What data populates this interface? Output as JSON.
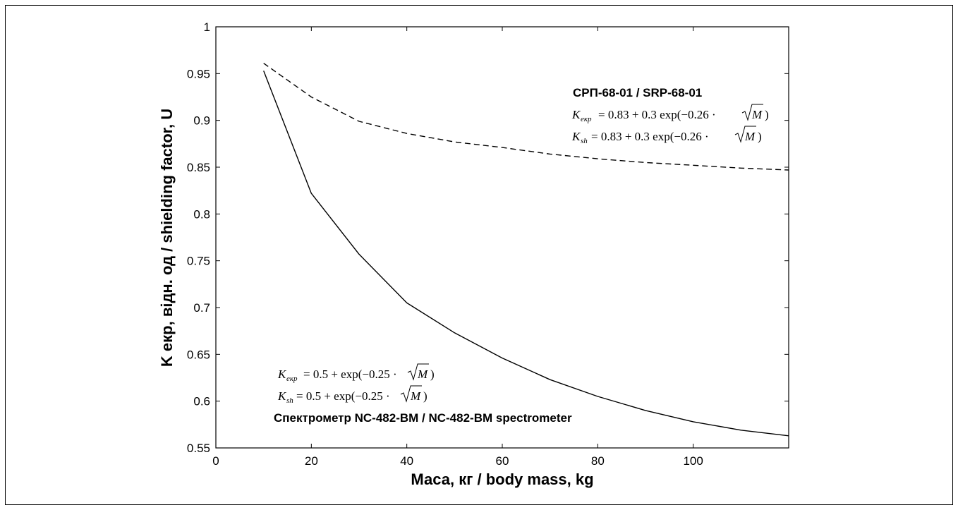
{
  "chart_data": {
    "type": "line",
    "xlabel": "Маса, кг / body mass, kg",
    "ylabel": "K екр, відн. од / shielding factor, U",
    "xlim": [
      0,
      120
    ],
    "ylim": [
      0.55,
      1.0
    ],
    "xticks": [
      "0",
      "20",
      "40",
      "60",
      "80",
      "100"
    ],
    "yticks": [
      "0.55",
      "0.6",
      "0.65",
      "0.7",
      "0.75",
      "0.8",
      "0.85",
      "0.9",
      "0.95",
      "1"
    ],
    "grid": false,
    "series": [
      {
        "name": "СРП-68-01 / SRP-68-01",
        "style": "dashed",
        "formulas": [
          "0.83 + 0.3 exp(−0.26 · √M)",
          "0.83 + 0.3 exp(−0.26 · √M)"
        ],
        "x": [
          10,
          20,
          30,
          40,
          50,
          60,
          70,
          80,
          90,
          100,
          110,
          120
        ],
        "y": [
          0.961,
          0.925,
          0.899,
          0.886,
          0.877,
          0.871,
          0.864,
          0.859,
          0.855,
          0.852,
          0.849,
          0.847
        ]
      },
      {
        "name": "Спектрометр NC-482-BM  / NC-482-BM spectrometer",
        "style": "solid",
        "formulas": [
          "0.5 + exp(−0.25 · √M)",
          "0.5 + exp(−0.25 · √M)"
        ],
        "x": [
          10,
          20,
          30,
          40,
          50,
          60,
          70,
          80,
          90,
          100,
          110,
          120
        ],
        "y": [
          0.953,
          0.822,
          0.757,
          0.705,
          0.673,
          0.646,
          0.623,
          0.605,
          0.59,
          0.578,
          0.569,
          0.563
        ]
      }
    ]
  },
  "annotations": {
    "srp_title": "СРП-68-01 / SRP-68-01",
    "srp_formula_1_lhs": "K",
    "srp_formula_1_sub": "екр",
    "srp_formula_1_rhs": "= 0.83 + 0.3 exp(−0.26 ·",
    "srp_formula_2_lhs": "K",
    "srp_formula_2_sub": "sh",
    "srp_formula_2_rhs": "= 0.83 + 0.3 exp(−0.26 ·",
    "nc_formula_1_lhs": "K",
    "nc_formula_1_sub": "екр",
    "nc_formula_1_rhs": "= 0.5 + exp(−0.25 ·",
    "nc_formula_2_lhs": "K",
    "nc_formula_2_sub": "sh",
    "nc_formula_2_rhs": "= 0.5 + exp(−0.25 ·",
    "nc_title": "Спектрометр NC-482-BM  / NC-482-BM spectrometer",
    "sqrt_arg": "M",
    "close_paren": ")"
  }
}
